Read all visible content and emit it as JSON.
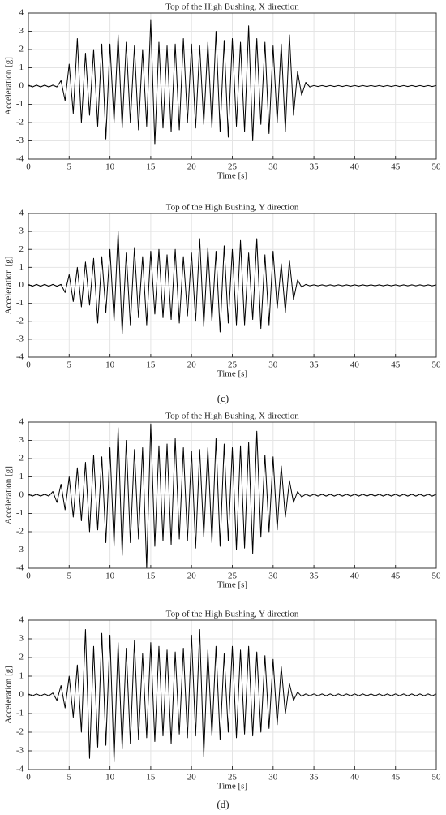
{
  "chart_data": [
    {
      "type": "line",
      "title": "Top of the High Bushing, X direction",
      "xlabel": "Time [s]",
      "ylabel": "Acceleration [g]",
      "x": [
        0,
        0.5,
        1,
        1.5,
        2,
        2.5,
        3,
        3.5,
        4,
        4.5,
        5,
        5.5,
        6,
        6.5,
        7,
        7.5,
        8,
        8.5,
        9,
        9.5,
        10,
        10.5,
        11,
        11.5,
        12,
        12.5,
        13,
        13.5,
        14,
        14.5,
        15,
        15.5,
        16,
        16.5,
        17,
        17.5,
        18,
        18.5,
        19,
        19.5,
        20,
        20.5,
        21,
        21.5,
        22,
        22.5,
        23,
        23.5,
        24,
        24.5,
        25,
        25.5,
        26,
        26.5,
        27,
        27.5,
        28,
        28.5,
        29,
        29.5,
        30,
        30.5,
        31,
        31.5,
        32,
        32.5,
        33,
        33.5,
        34,
        34.5,
        35,
        35.5,
        36,
        36.5,
        37,
        37.5,
        38,
        38.5,
        39,
        39.5,
        40,
        40.5,
        41,
        41.5,
        42,
        42.5,
        43,
        43.5,
        44,
        44.5,
        45,
        45.5,
        46,
        46.5,
        47,
        47.5,
        48,
        48.5,
        49,
        49.5,
        50
      ],
      "series": [
        {
          "color": "#000000",
          "values": [
            0.05,
            -0.05,
            0.05,
            -0.05,
            0.05,
            -0.05,
            0.05,
            -0.05,
            0.3,
            -0.8,
            1.2,
            -1.5,
            2.6,
            -2.0,
            1.8,
            -1.6,
            2.0,
            -2.2,
            2.3,
            -2.9,
            2.3,
            -2.0,
            2.8,
            -2.3,
            2.4,
            -2.0,
            2.2,
            -2.4,
            2.0,
            -2.2,
            3.6,
            -3.2,
            2.4,
            -2.3,
            2.2,
            -2.5,
            2.3,
            -2.4,
            2.6,
            -2.0,
            2.3,
            -2.3,
            2.2,
            -2.1,
            2.4,
            -2.3,
            3.0,
            -2.5,
            2.5,
            -2.8,
            2.6,
            -2.2,
            2.4,
            -2.5,
            3.3,
            -3.0,
            2.6,
            -2.1,
            2.4,
            -2.6,
            2.2,
            -2.0,
            2.3,
            -2.5,
            2.8,
            -1.6,
            0.8,
            -0.5,
            0.2,
            -0.05,
            0.03,
            -0.03,
            0.03,
            -0.03,
            0.03,
            -0.03,
            0.03,
            -0.03,
            0.03,
            -0.03,
            0.03,
            -0.03,
            0.03,
            -0.03,
            0.03,
            -0.03,
            0.03,
            -0.03,
            0.03,
            -0.03,
            0.03,
            -0.03,
            0.03,
            -0.03,
            0.03,
            -0.03,
            0.03,
            -0.03,
            0.03,
            -0.03,
            0.03
          ]
        }
      ],
      "xlim": [
        0,
        50
      ],
      "ylim": [
        -4,
        4
      ],
      "xticks": [
        0,
        5,
        10,
        15,
        20,
        25,
        30,
        35,
        40,
        45,
        50
      ],
      "yticks": [
        -4,
        -3,
        -2,
        -1,
        0,
        1,
        2,
        3,
        4
      ],
      "grid": true
    },
    {
      "type": "line",
      "title": "Top of the High Bushing, Y direction",
      "xlabel": "Time [s]",
      "ylabel": "Acceleration [g]",
      "x": [
        0,
        0.5,
        1,
        1.5,
        2,
        2.5,
        3,
        3.5,
        4,
        4.5,
        5,
        5.5,
        6,
        6.5,
        7,
        7.5,
        8,
        8.5,
        9,
        9.5,
        10,
        10.5,
        11,
        11.5,
        12,
        12.5,
        13,
        13.5,
        14,
        14.5,
        15,
        15.5,
        16,
        16.5,
        17,
        17.5,
        18,
        18.5,
        19,
        19.5,
        20,
        20.5,
        21,
        21.5,
        22,
        22.5,
        23,
        23.5,
        24,
        24.5,
        25,
        25.5,
        26,
        26.5,
        27,
        27.5,
        28,
        28.5,
        29,
        29.5,
        30,
        30.5,
        31,
        31.5,
        32,
        32.5,
        33,
        33.5,
        34,
        34.5,
        35,
        35.5,
        36,
        36.5,
        37,
        37.5,
        38,
        38.5,
        39,
        39.5,
        40,
        40.5,
        41,
        41.5,
        42,
        42.5,
        43,
        43.5,
        44,
        44.5,
        45,
        45.5,
        46,
        46.5,
        47,
        47.5,
        48,
        48.5,
        49,
        49.5,
        50
      ],
      "series": [
        {
          "color": "#000000",
          "values": [
            0.05,
            -0.05,
            0.05,
            -0.05,
            0.05,
            -0.05,
            0.05,
            -0.05,
            0.05,
            -0.4,
            0.6,
            -0.9,
            1.0,
            -1.2,
            1.3,
            -1.1,
            1.5,
            -2.1,
            1.6,
            -1.5,
            2.0,
            -2.0,
            3.0,
            -2.7,
            1.8,
            -2.2,
            2.1,
            -1.8,
            1.6,
            -2.2,
            1.9,
            -1.6,
            2.0,
            -1.8,
            1.7,
            -1.9,
            2.0,
            -2.1,
            1.6,
            -1.7,
            1.8,
            -2.0,
            2.6,
            -2.3,
            2.1,
            -2.0,
            1.9,
            -2.6,
            2.2,
            -2.1,
            2.0,
            -2.2,
            2.5,
            -2.2,
            1.8,
            -1.9,
            2.6,
            -2.4,
            1.7,
            -2.2,
            1.9,
            -1.3,
            1.2,
            -1.5,
            1.4,
            -0.8,
            0.3,
            -0.1,
            0.05,
            -0.03,
            0.03,
            -0.03,
            0.03,
            -0.03,
            0.03,
            -0.03,
            0.03,
            -0.03,
            0.03,
            -0.03,
            0.03,
            -0.03,
            0.03,
            -0.03,
            0.03,
            -0.03,
            0.03,
            -0.03,
            0.03,
            -0.03,
            0.03,
            -0.03,
            0.03,
            -0.03,
            0.03,
            -0.03,
            0.03,
            -0.03,
            0.03,
            -0.03,
            0.03
          ]
        }
      ],
      "xlim": [
        0,
        50
      ],
      "ylim": [
        -4,
        4
      ],
      "xticks": [
        0,
        5,
        10,
        15,
        20,
        25,
        30,
        35,
        40,
        45,
        50
      ],
      "yticks": [
        -4,
        -3,
        -2,
        -1,
        0,
        1,
        2,
        3,
        4
      ],
      "grid": true
    },
    {
      "type": "line",
      "title": "Top of the High Bushing, X direction",
      "xlabel": "Time [s]",
      "ylabel": "Acceleration [g]",
      "x": [
        0,
        0.5,
        1,
        1.5,
        2,
        2.5,
        3,
        3.5,
        4,
        4.5,
        5,
        5.5,
        6,
        6.5,
        7,
        7.5,
        8,
        8.5,
        9,
        9.5,
        10,
        10.5,
        11,
        11.5,
        12,
        12.5,
        13,
        13.5,
        14,
        14.5,
        15,
        15.5,
        16,
        16.5,
        17,
        17.5,
        18,
        18.5,
        19,
        19.5,
        20,
        20.5,
        21,
        21.5,
        22,
        22.5,
        23,
        23.5,
        24,
        24.5,
        25,
        25.5,
        26,
        26.5,
        27,
        27.5,
        28,
        28.5,
        29,
        29.5,
        30,
        30.5,
        31,
        31.5,
        32,
        32.5,
        33,
        33.5,
        34,
        34.5,
        35,
        35.5,
        36,
        36.5,
        37,
        37.5,
        38,
        38.5,
        39,
        39.5,
        40,
        40.5,
        41,
        41.5,
        42,
        42.5,
        43,
        43.5,
        44,
        44.5,
        45,
        45.5,
        46,
        46.5,
        47,
        47.5,
        48,
        48.5,
        49,
        49.5,
        50
      ],
      "series": [
        {
          "color": "#000000",
          "values": [
            0.05,
            -0.05,
            0.05,
            -0.05,
            0.05,
            -0.05,
            0.2,
            -0.4,
            0.6,
            -0.8,
            1.0,
            -1.2,
            1.5,
            -1.4,
            1.8,
            -2.0,
            2.2,
            -1.9,
            2.1,
            -2.6,
            2.6,
            -2.8,
            3.7,
            -3.3,
            3.0,
            -2.6,
            2.5,
            -2.4,
            2.6,
            -4.0,
            3.9,
            -2.8,
            2.7,
            -2.5,
            2.8,
            -2.7,
            3.1,
            -2.4,
            2.6,
            -2.5,
            2.4,
            -2.9,
            2.5,
            -2.3,
            2.6,
            -2.6,
            3.1,
            -2.8,
            2.8,
            -2.5,
            2.6,
            -3.0,
            2.7,
            -2.9,
            2.9,
            -3.2,
            3.5,
            -2.3,
            2.2,
            -2.0,
            2.1,
            -1.9,
            1.6,
            -1.2,
            0.8,
            -0.4,
            0.2,
            -0.1,
            0.05,
            -0.05,
            0.05,
            -0.05,
            0.05,
            -0.05,
            0.05,
            -0.05,
            0.05,
            -0.05,
            0.05,
            -0.05,
            0.05,
            -0.05,
            0.05,
            -0.05,
            0.05,
            -0.05,
            0.05,
            -0.05,
            0.05,
            -0.05,
            0.05,
            -0.05,
            0.05,
            -0.05,
            0.05,
            -0.05,
            0.05,
            -0.05,
            0.05,
            -0.05,
            0.05
          ]
        }
      ],
      "xlim": [
        0,
        50
      ],
      "ylim": [
        -4,
        4
      ],
      "xticks": [
        0,
        5,
        10,
        15,
        20,
        25,
        30,
        35,
        40,
        45,
        50
      ],
      "yticks": [
        -4,
        -3,
        -2,
        -1,
        0,
        1,
        2,
        3,
        4
      ],
      "grid": true
    },
    {
      "type": "line",
      "title": "Top of the High Bushing, Y direction",
      "xlabel": "Time [s]",
      "ylabel": "Acceleration [g]",
      "x": [
        0,
        0.5,
        1,
        1.5,
        2,
        2.5,
        3,
        3.5,
        4,
        4.5,
        5,
        5.5,
        6,
        6.5,
        7,
        7.5,
        8,
        8.5,
        9,
        9.5,
        10,
        10.5,
        11,
        11.5,
        12,
        12.5,
        13,
        13.5,
        14,
        14.5,
        15,
        15.5,
        16,
        16.5,
        17,
        17.5,
        18,
        18.5,
        19,
        19.5,
        20,
        20.5,
        21,
        21.5,
        22,
        22.5,
        23,
        23.5,
        24,
        24.5,
        25,
        25.5,
        26,
        26.5,
        27,
        27.5,
        28,
        28.5,
        29,
        29.5,
        30,
        30.5,
        31,
        31.5,
        32,
        32.5,
        33,
        33.5,
        34,
        34.5,
        35,
        35.5,
        36,
        36.5,
        37,
        37.5,
        38,
        38.5,
        39,
        39.5,
        40,
        40.5,
        41,
        41.5,
        42,
        42.5,
        43,
        43.5,
        44,
        44.5,
        45,
        45.5,
        46,
        46.5,
        47,
        47.5,
        48,
        48.5,
        49,
        49.5,
        50
      ],
      "series": [
        {
          "color": "#000000",
          "values": [
            0.05,
            -0.05,
            0.05,
            -0.05,
            0.05,
            -0.05,
            0.1,
            -0.3,
            0.5,
            -0.7,
            1.0,
            -1.2,
            1.6,
            -2.0,
            3.5,
            -3.4,
            2.6,
            -2.8,
            3.3,
            -2.7,
            3.2,
            -3.6,
            2.8,
            -2.9,
            2.5,
            -2.6,
            2.9,
            -2.4,
            2.2,
            -2.3,
            2.8,
            -2.5,
            2.6,
            -2.2,
            2.4,
            -2.6,
            2.3,
            -2.1,
            2.5,
            -2.3,
            3.2,
            -2.2,
            3.5,
            -3.3,
            2.4,
            -2.2,
            2.6,
            -2.4,
            2.2,
            -2.0,
            2.6,
            -2.3,
            2.4,
            -2.1,
            2.6,
            -2.2,
            2.3,
            -2.0,
            2.1,
            -1.8,
            1.9,
            -1.6,
            1.5,
            -1.0,
            0.6,
            -0.3,
            0.15,
            -0.08,
            0.05,
            -0.05,
            0.05,
            -0.05,
            0.05,
            -0.05,
            0.05,
            -0.05,
            0.05,
            -0.05,
            0.05,
            -0.05,
            0.05,
            -0.05,
            0.05,
            -0.05,
            0.05,
            -0.05,
            0.05,
            -0.05,
            0.05,
            -0.05,
            0.05,
            -0.05,
            0.05,
            -0.05,
            0.05,
            -0.05,
            0.05,
            -0.05,
            0.05,
            -0.05,
            0.05
          ]
        }
      ],
      "xlim": [
        0,
        50
      ],
      "ylim": [
        -4,
        4
      ],
      "xticks": [
        0,
        5,
        10,
        15,
        20,
        25,
        30,
        35,
        40,
        45,
        50
      ],
      "yticks": [
        -4,
        -3,
        -2,
        -1,
        0,
        1,
        2,
        3,
        4
      ],
      "grid": true
    }
  ],
  "panel_labels": [
    "(c)",
    "(d)"
  ]
}
